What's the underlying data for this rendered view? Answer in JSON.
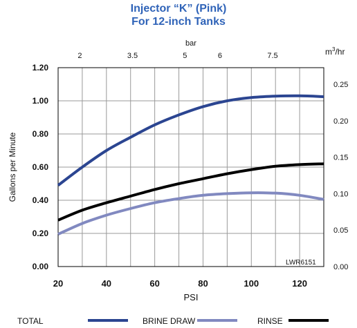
{
  "chart_data": {
    "type": "line",
    "title": "Injector “K” (Pink)",
    "subtitle": "For 12-inch Tanks",
    "xlabel": "PSI",
    "ylabel": "Gallons per Minute",
    "x_top_label": "bar",
    "y_right_label_base": "m",
    "y_right_label_sup": "3",
    "y_right_label_rest": "/hr",
    "xlim": [
      20,
      130
    ],
    "ylim": [
      0,
      1.2
    ],
    "x_ticks": [
      "20",
      "40",
      "60",
      "80",
      "100",
      "120"
    ],
    "y_ticks": [
      "0.00",
      "0.20",
      "0.40",
      "0.60",
      "0.80",
      "1.00",
      "1.20"
    ],
    "top_ticks": [
      {
        "psi": 29,
        "label": "2"
      },
      {
        "psi": 50.8,
        "label": "3.5"
      },
      {
        "psi": 72.5,
        "label": "5"
      },
      {
        "psi": 87,
        "label": "6"
      },
      {
        "psi": 108.8,
        "label": "7.5"
      }
    ],
    "right_ticks": [
      {
        "gpm": 0.0,
        "label": "0.00"
      },
      {
        "gpm": 0.22,
        "label": "0.05"
      },
      {
        "gpm": 0.44,
        "label": "0.10"
      },
      {
        "gpm": 0.66,
        "label": "0.15"
      },
      {
        "gpm": 0.88,
        "label": "0.20"
      },
      {
        "gpm": 1.1,
        "label": "0.25"
      }
    ],
    "grid": true,
    "annotation": "LWR6151",
    "series": [
      {
        "name": "TOTAL",
        "color": "#2b4591",
        "x": [
          20,
          30,
          40,
          50,
          60,
          70,
          80,
          90,
          100,
          110,
          120,
          130
        ],
        "y": [
          0.49,
          0.6,
          0.7,
          0.78,
          0.855,
          0.915,
          0.965,
          1.0,
          1.02,
          1.028,
          1.03,
          1.025
        ]
      },
      {
        "name": "BRINE DRAW",
        "color": "#8189c0",
        "x": [
          20,
          30,
          40,
          50,
          60,
          70,
          80,
          90,
          100,
          110,
          120,
          130
        ],
        "y": [
          0.195,
          0.26,
          0.31,
          0.35,
          0.385,
          0.41,
          0.43,
          0.44,
          0.445,
          0.443,
          0.43,
          0.405
        ]
      },
      {
        "name": "RINSE",
        "color": "#000000",
        "x": [
          20,
          30,
          40,
          50,
          60,
          70,
          80,
          90,
          100,
          110,
          120,
          130
        ],
        "y": [
          0.28,
          0.34,
          0.385,
          0.425,
          0.465,
          0.5,
          0.53,
          0.56,
          0.585,
          0.605,
          0.615,
          0.62
        ]
      }
    ],
    "legend_position": "bottom"
  }
}
